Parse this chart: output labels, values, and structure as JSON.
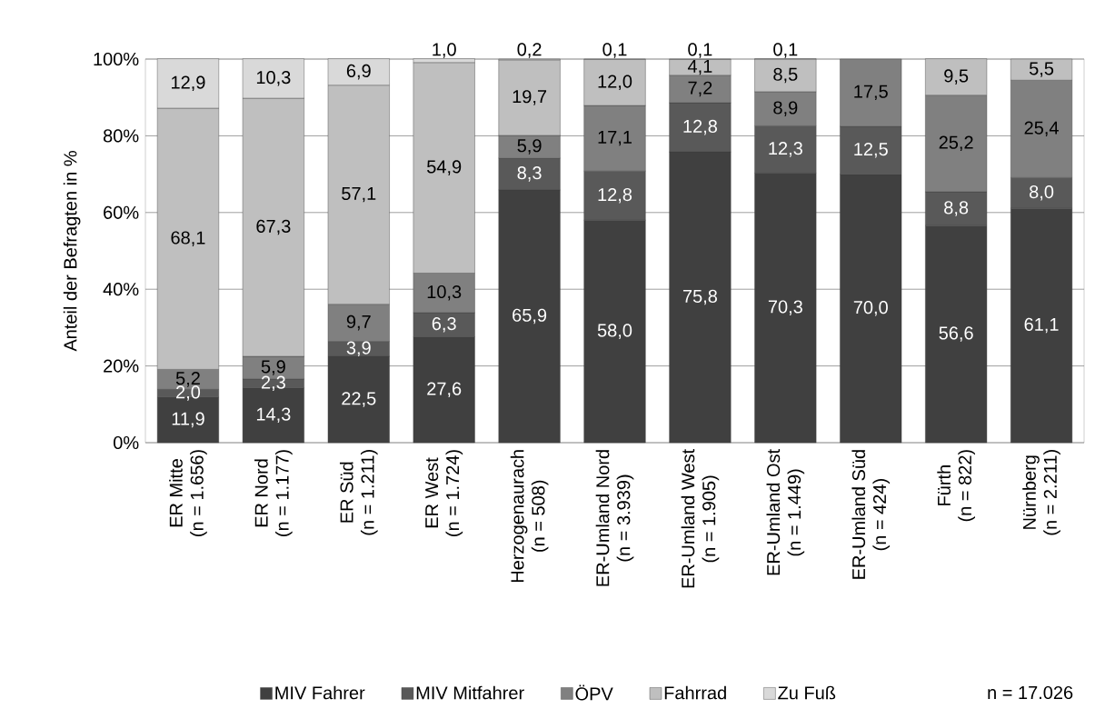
{
  "chart_data": {
    "type": "bar",
    "stacked": true,
    "ylabel": "Anteil der Befragten in %",
    "categories": [
      "ER Mitte\n(n = 1.656)",
      "ER Nord\n(n = 1.177)",
      "ER Süd\n(n = 1.211)",
      "ER West\n(n = 1.724)",
      "Herzogenaurach\n(n = 508)",
      "ER-Umland Nord\n(n = 3.939)",
      "ER-Umland West\n(n = 1.905)",
      "ER-Umland Ost\n(n = 1.449)",
      "ER-Umland Süd\n(n = 424)",
      "Fürth\n(n = 822)",
      "Nürnberg\n(n = 2.211)"
    ],
    "series": [
      {
        "name": "MIV Fahrer",
        "color": "#404040",
        "values": [
          11.9,
          14.3,
          22.5,
          27.6,
          65.9,
          58.0,
          75.8,
          70.3,
          70.0,
          56.6,
          61.1
        ],
        "value_labels": [
          "11,9",
          "14,3",
          "22,5",
          "27,6",
          "65,9",
          "58,0",
          "75,8",
          "70,3",
          "70,0",
          "56,6",
          "61,1"
        ]
      },
      {
        "name": "MIV Mitfahrer",
        "color": "#595959",
        "values": [
          2.0,
          2.3,
          3.9,
          6.3,
          8.3,
          12.8,
          12.8,
          12.3,
          12.5,
          8.8,
          8.0
        ],
        "value_labels": [
          "2,0",
          "2,3",
          "3,9",
          "6,3",
          "8,3",
          "12,8",
          "12,8",
          "12,3",
          "12,5",
          "8,8",
          "8,0"
        ]
      },
      {
        "name": "ÖPV",
        "color": "#808080",
        "values": [
          5.2,
          5.9,
          9.7,
          10.3,
          5.9,
          17.1,
          7.2,
          8.9,
          17.5,
          25.2,
          25.4
        ],
        "value_labels": [
          "5,2",
          "5,9",
          "9,7",
          "10,3",
          "5,9",
          "17,1",
          "7,2",
          "8,9",
          "17,5",
          "25,2",
          "25,4"
        ]
      },
      {
        "name": "Fahrrad",
        "color": "#bfbfbf",
        "values": [
          68.1,
          67.3,
          57.1,
          54.9,
          19.7,
          12.0,
          4.1,
          8.5,
          null,
          9.5,
          5.5
        ],
        "value_labels": [
          "68,1",
          "67,3",
          "57,1",
          "54,9",
          "19,7",
          "12,0",
          "4,1",
          "8,5",
          null,
          "9,5",
          "5,5"
        ]
      },
      {
        "name": "Zu Fuß",
        "color": "#d9d9d9",
        "values": [
          12.9,
          10.3,
          6.9,
          1.0,
          0.2,
          0.1,
          0.1,
          0.1,
          null,
          null,
          null
        ],
        "value_labels": [
          "12,9",
          "10,3",
          "6,9",
          "1,0",
          "0,2",
          "0,1",
          "0,1",
          "0,1",
          null,
          null,
          null
        ]
      }
    ],
    "ylim": [
      0,
      100
    ],
    "yticks": [
      {
        "value": 0,
        "label": "0%"
      },
      {
        "value": 20,
        "label": "20%"
      },
      {
        "value": 40,
        "label": "40%"
      },
      {
        "value": 60,
        "label": "60%"
      },
      {
        "value": 80,
        "label": "80%"
      },
      {
        "value": 100,
        "label": "100%"
      }
    ],
    "grid": "y",
    "legend": "bottom",
    "annotations": [
      "n = 17.026"
    ]
  }
}
